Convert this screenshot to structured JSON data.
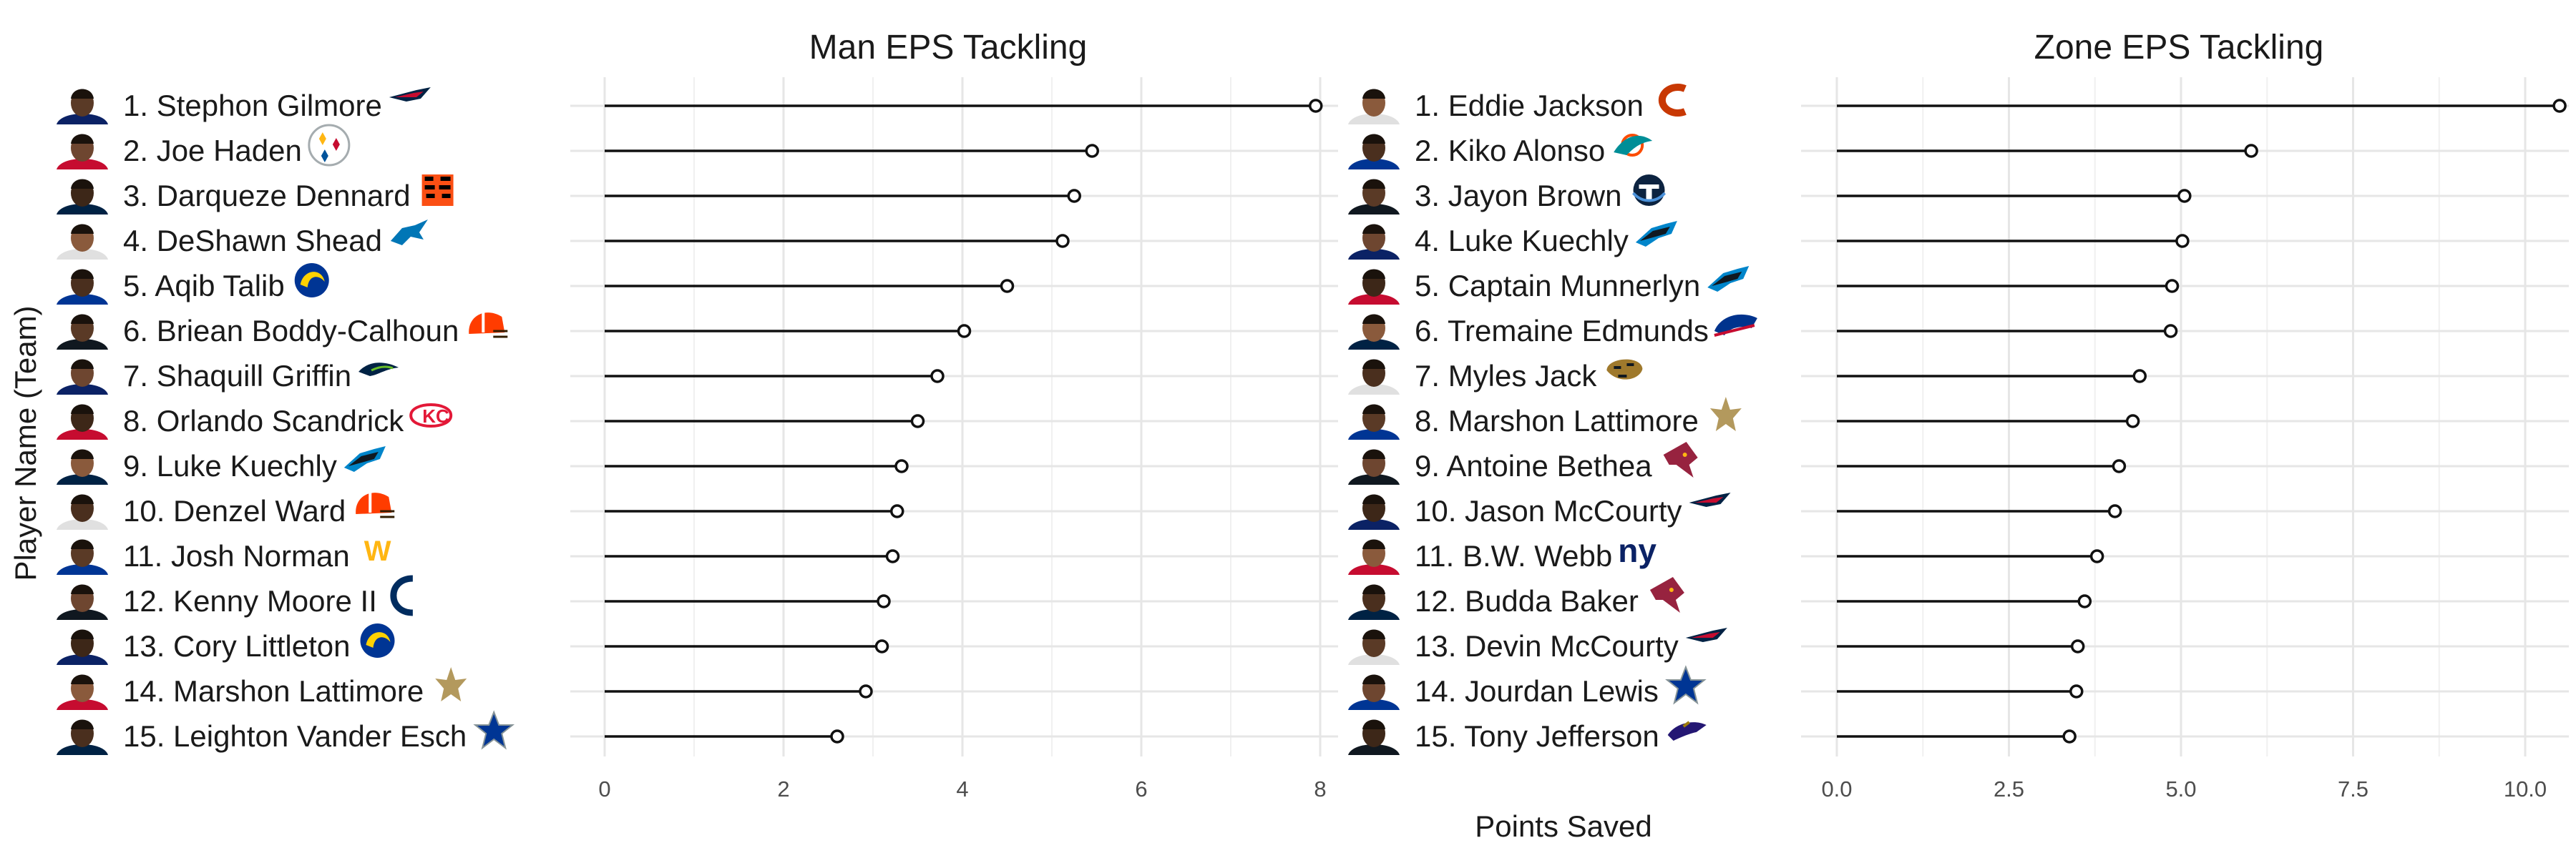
{
  "y_axis_title": "Player Name (Team)",
  "x_axis_title": "Points Saved",
  "chart_data": [
    {
      "type": "lollipop",
      "title": "Man EPS Tackling",
      "xlim": [
        0,
        8.2
      ],
      "x_ticks": [
        0,
        2,
        4,
        6,
        8
      ],
      "x_tick_labels": [
        "0",
        "2",
        "4",
        "6",
        "8"
      ],
      "grid": true,
      "players": [
        {
          "label": "1. Stephon Gilmore",
          "team": "patriots",
          "value": 7.95
        },
        {
          "label": "2. Joe Haden",
          "team": "steelers",
          "value": 5.45
        },
        {
          "label": "3. Darqueze Dennard",
          "team": "bengals",
          "value": 5.25
        },
        {
          "label": "4. DeShawn Shead",
          "team": "lions",
          "value": 5.12
        },
        {
          "label": "5. Aqib Talib",
          "team": "rams",
          "value": 4.5
        },
        {
          "label": "6. Briean Boddy-Calhoun",
          "team": "browns",
          "value": 4.02
        },
        {
          "label": "7. Shaquill Griffin",
          "team": "seahawks",
          "value": 3.72
        },
        {
          "label": "8. Orlando Scandrick",
          "team": "chiefs",
          "value": 3.5
        },
        {
          "label": "9. Luke Kuechly",
          "team": "panthers",
          "value": 3.32
        },
        {
          "label": "10. Denzel Ward",
          "team": "browns",
          "value": 3.27
        },
        {
          "label": "11. Josh Norman",
          "team": "washington",
          "value": 3.22
        },
        {
          "label": "12. Kenny Moore II",
          "team": "colts",
          "value": 3.12
        },
        {
          "label": "13. Cory Littleton",
          "team": "rams",
          "value": 3.1
        },
        {
          "label": "14. Marshon Lattimore",
          "team": "saints",
          "value": 2.92
        },
        {
          "label": "15. Leighton Vander Esch",
          "team": "cowboys",
          "value": 2.6
        }
      ]
    },
    {
      "type": "lollipop",
      "title": "Zone EPS Tackling",
      "xlim": [
        0,
        10.7
      ],
      "x_ticks": [
        0,
        2.5,
        5,
        7.5,
        10
      ],
      "x_tick_labels": [
        "0.0",
        "2.5",
        "5.0",
        "7.5",
        "10.0"
      ],
      "grid": true,
      "players": [
        {
          "label": "1. Eddie Jackson",
          "team": "bears",
          "value": 10.5
        },
        {
          "label": "2. Kiko Alonso",
          "team": "dolphins",
          "value": 6.02
        },
        {
          "label": "3. Jayon Brown",
          "team": "titans",
          "value": 5.05
        },
        {
          "label": "4. Luke Kuechly",
          "team": "panthers",
          "value": 5.02
        },
        {
          "label": "5. Captain Munnerlyn",
          "team": "panthers",
          "value": 4.87
        },
        {
          "label": "6. Tremaine Edmunds",
          "team": "bills",
          "value": 4.85
        },
        {
          "label": "7. Myles Jack",
          "team": "jaguars",
          "value": 4.4
        },
        {
          "label": "8. Marshon Lattimore",
          "team": "saints",
          "value": 4.3
        },
        {
          "label": "9. Antoine Bethea",
          "team": "cardinals",
          "value": 4.1
        },
        {
          "label": "10. Jason McCourty",
          "team": "patriots",
          "value": 4.04
        },
        {
          "label": "11. B.W. Webb",
          "team": "giants",
          "value": 3.78
        },
        {
          "label": "12. Budda Baker",
          "team": "cardinals",
          "value": 3.6
        },
        {
          "label": "13. Devin McCourty",
          "team": "patriots",
          "value": 3.5
        },
        {
          "label": "14. Jourdan Lewis",
          "team": "cowboys",
          "value": 3.48
        },
        {
          "label": "15. Tony Jefferson",
          "team": "ravens",
          "value": 3.38
        }
      ]
    }
  ],
  "colors": {
    "stem": "#111111",
    "grid": "#e6e6e6",
    "text": "#1a1a1a",
    "tick": "#4d4d4d"
  }
}
